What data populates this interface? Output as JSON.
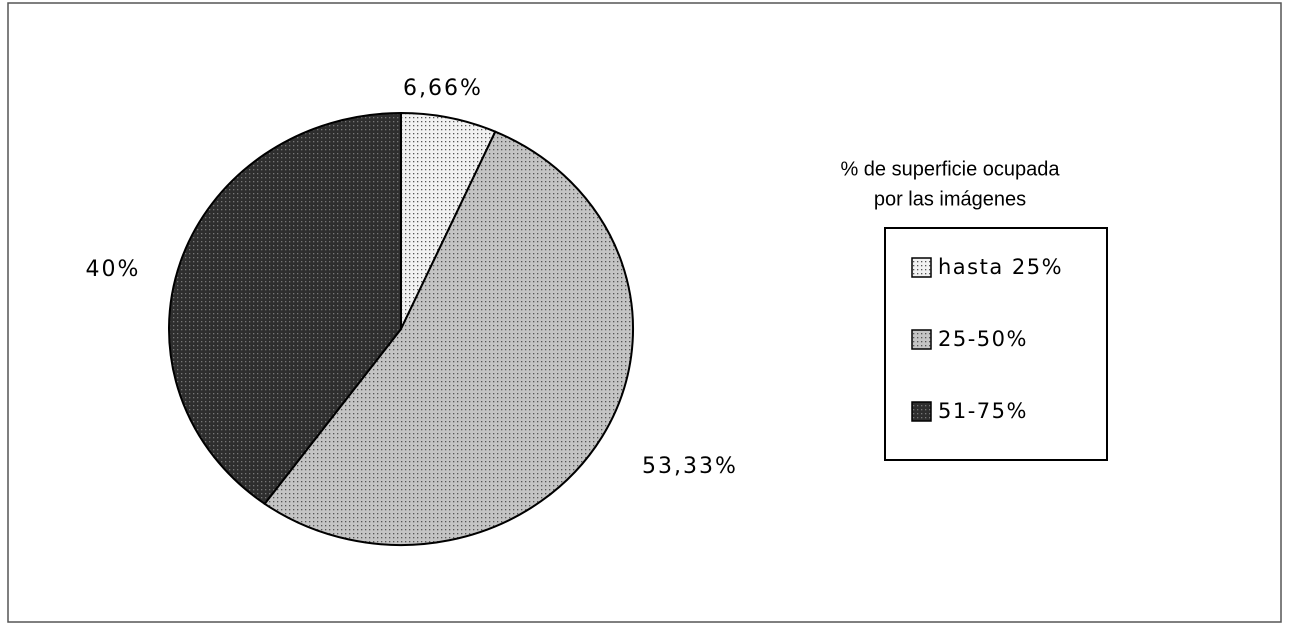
{
  "chart_data": {
    "type": "pie",
    "categories": [
      "hasta 25%",
      "25-50%",
      "51-75%"
    ],
    "values": [
      6.66,
      53.33,
      40
    ],
    "value_labels": [
      "6,66%",
      "53,33%",
      "40%"
    ],
    "colors": [
      "#f2f2f2",
      "#c4c4c4",
      "#2e2e2e"
    ],
    "legend_title": [
      "% de superficie ocupada",
      "por las imágenes"
    ],
    "legend": "right"
  }
}
